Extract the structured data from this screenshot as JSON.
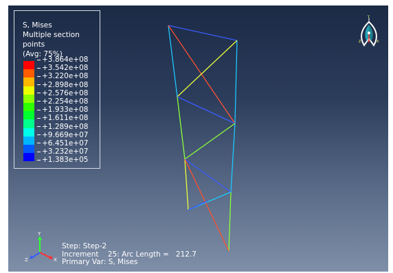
{
  "legend": {
    "title_line1": "S, Mises",
    "title_line2": "Multiple section points",
    "title_line3": "(Avg: 75%)",
    "values": [
      "+3.864e+08",
      "+3.542e+08",
      "+3.220e+08",
      "+2.898e+08",
      "+2.576e+08",
      "+2.254e+08",
      "+1.933e+08",
      "+1.611e+08",
      "+1.289e+08",
      "+9.669e+07",
      "+6.451e+07",
      "+3.232e+07",
      "+1.383e+05"
    ],
    "colors": [
      "#ff0000",
      "#ff5b00",
      "#ffb700",
      "#ecff00",
      "#8cff00",
      "#2dff00",
      "#00ff2e",
      "#00ff8c",
      "#00ffea",
      "#00b6ff",
      "#0059ff",
      "#0000ff"
    ]
  },
  "status": {
    "step_line": "Step: Step-2",
    "increment_label": "Increment",
    "increment_value": "25",
    "arc_label": "Arc Length =",
    "arc_value": "212.7",
    "primary_line": "Primary Var: S, Mises"
  },
  "triad": {
    "x": "X",
    "y": "Y",
    "z": "Z"
  },
  "compass": {
    "x": "X",
    "y": "Y",
    "z": "Z"
  }
}
